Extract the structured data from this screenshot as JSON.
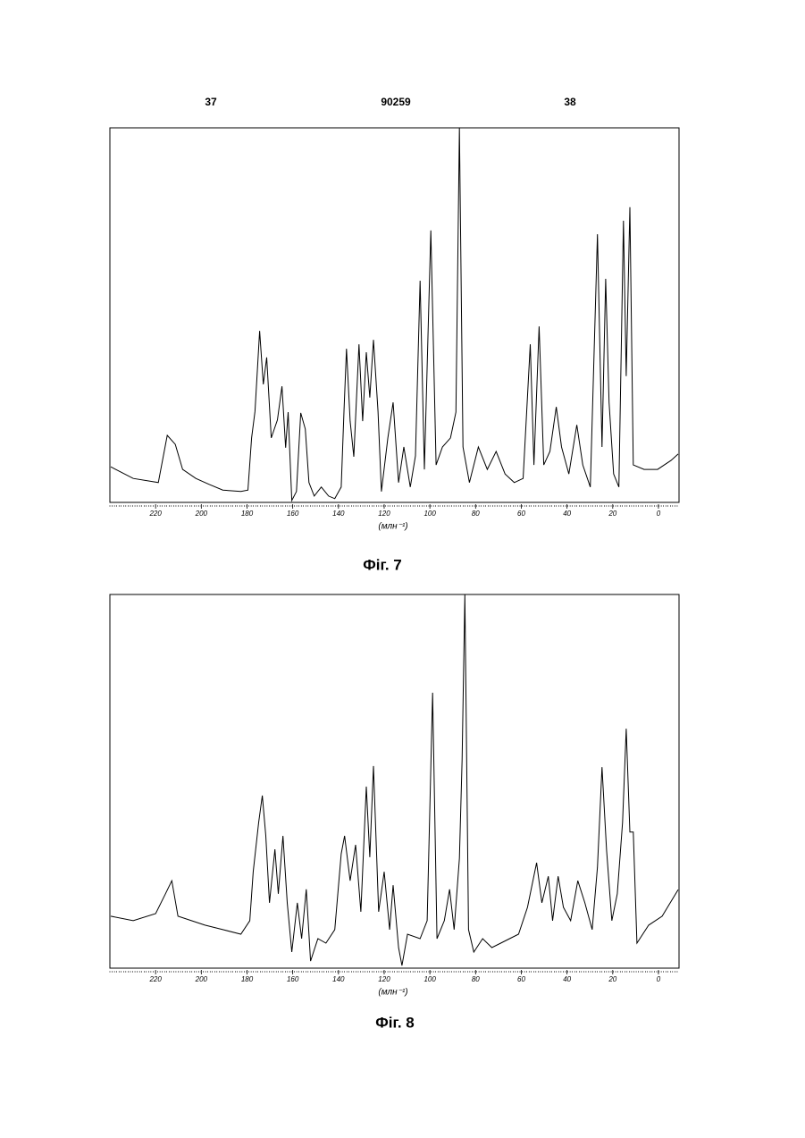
{
  "header": {
    "left": "37",
    "center": "90259",
    "right": "38"
  },
  "chart_data": [
    {
      "type": "line",
      "caption": "Фіг. 7",
      "xlabel": "(млн⁻¹)",
      "xlim": [
        240,
        -9
      ],
      "ylim": [
        0,
        100
      ],
      "xticks": [
        220,
        200,
        180,
        160,
        140,
        120,
        100,
        80,
        60,
        40,
        20,
        0
      ],
      "x": [
        239.6,
        229.8,
        218.8,
        214.9,
        211.4,
        208.2,
        202.4,
        196.5,
        190.6,
        182.7,
        179.6,
        178.0,
        176.5,
        174.5,
        172.9,
        171.4,
        169.4,
        166.7,
        164.7,
        163.1,
        162.0,
        160.4,
        158.4,
        156.5,
        154.5,
        152.9,
        150.6,
        147.5,
        144.3,
        141.6,
        138.8,
        137.6,
        136.5,
        134.9,
        133.3,
        131.0,
        129.4,
        127.8,
        126.3,
        124.7,
        122.7,
        121.2,
        118.4,
        116.1,
        113.7,
        111.4,
        108.6,
        106.3,
        104.3,
        102.4,
        99.6,
        97.3,
        94.5,
        91.0,
        88.6,
        87.1,
        85.5,
        82.7,
        78.8,
        74.9,
        71.0,
        67.1,
        63.1,
        59.2,
        56.1,
        54.5,
        52.2,
        50.2,
        47.5,
        44.7,
        42.4,
        39.2,
        35.7,
        33.1,
        29.8,
        26.7,
        24.7,
        23.1,
        21.6,
        19.6,
        17.3,
        15.3,
        14.1,
        12.5,
        11.0,
        6.3,
        0.4,
        -5.5,
        -8.6
      ],
      "series": [
        {
          "color": "#000000",
          "values": [
            9.5,
            6.4,
            5.3,
            17.9,
            15.5,
            8.8,
            6.4,
            4.8,
            3.3,
            2.9,
            3.3,
            17.2,
            24.3,
            45.8,
            31.5,
            38.7,
            17.2,
            22.0,
            31.0,
            14.6,
            24.1,
            0.5,
            2.9,
            23.9,
            19.6,
            5.3,
            1.7,
            4.1,
            1.7,
            1.0,
            4.1,
            24.3,
            41.0,
            21.7,
            12.2,
            42.2,
            21.7,
            40.1,
            28.0,
            43.4,
            24.3,
            2.9,
            17.2,
            26.7,
            5.3,
            14.8,
            4.1,
            12.4,
            59.2,
            8.8,
            72.6,
            10.0,
            14.8,
            17.2,
            24.1,
            100,
            14.8,
            5.3,
            14.8,
            8.8,
            13.6,
            7.6,
            5.3,
            6.4,
            42.2,
            10.0,
            47.0,
            10.0,
            13.6,
            25.5,
            14.8,
            7.6,
            20.7,
            10.0,
            4.1,
            71.6,
            14.8,
            59.7,
            26.7,
            7.6,
            4.1,
            75.2,
            33.7,
            78.8,
            10.0,
            8.8,
            8.8,
            11.2,
            12.9
          ]
        }
      ]
    },
    {
      "type": "line",
      "caption": "Фіг. 8",
      "xlabel": "(млн⁻¹)",
      "xlim": [
        240,
        -9
      ],
      "ylim": [
        0,
        100
      ],
      "xticks": [
        220,
        200,
        180,
        160,
        140,
        120,
        100,
        80,
        60,
        40,
        20,
        0
      ],
      "x": [
        239.6,
        229.8,
        220.0,
        215.7,
        212.9,
        210.2,
        204.3,
        198.4,
        190.6,
        182.7,
        178.8,
        177.3,
        174.9,
        173.3,
        171.8,
        170.2,
        167.8,
        166.3,
        164.3,
        162.4,
        160.4,
        158.0,
        156.1,
        154.1,
        152.2,
        149.0,
        145.5,
        141.6,
        138.8,
        137.3,
        134.9,
        132.5,
        130.2,
        127.8,
        126.3,
        124.7,
        122.4,
        120.0,
        117.6,
        116.1,
        113.7,
        112.2,
        109.8,
        104.3,
        101.2,
        98.8,
        96.9,
        93.7,
        91.4,
        89.4,
        87.1,
        85.9,
        84.7,
        83.1,
        80.8,
        76.9,
        72.9,
        69.0,
        65.1,
        61.2,
        57.3,
        53.3,
        51.0,
        48.2,
        46.3,
        43.9,
        41.6,
        38.4,
        35.3,
        32.2,
        29.0,
        26.7,
        24.7,
        22.7,
        20.4,
        18.0,
        15.7,
        14.1,
        12.5,
        11.0,
        9.4,
        4.3,
        -1.6,
        -8.6
      ],
      "series": [
        {
          "color": "#000000",
          "values": [
            13.9,
            12.7,
            14.6,
            19.9,
            23.4,
            13.9,
            12.7,
            11.5,
            10.3,
            9.1,
            12.7,
            25.8,
            39.0,
            46.2,
            35.4,
            17.5,
            31.8,
            19.9,
            35.4,
            17.5,
            4.3,
            17.5,
            7.9,
            21.1,
            1.9,
            7.9,
            6.7,
            10.3,
            30.6,
            35.4,
            23.4,
            33.0,
            15.1,
            48.6,
            29.7,
            54.1,
            15.1,
            25.8,
            10.3,
            22.2,
            5.5,
            0.7,
            9.1,
            7.9,
            12.7,
            73.7,
            7.9,
            12.7,
            21.1,
            10.3,
            29.4,
            55.7,
            100,
            10.3,
            4.3,
            7.9,
            5.5,
            6.7,
            7.9,
            9.1,
            16.3,
            28.2,
            17.5,
            24.6,
            12.7,
            24.6,
            16.3,
            12.7,
            23.4,
            17.5,
            10.3,
            27.0,
            53.8,
            31.6,
            12.7,
            19.9,
            39.0,
            64.1,
            36.4,
            36.4,
            6.7,
            11.5,
            13.9,
            21.0
          ]
        }
      ]
    }
  ]
}
